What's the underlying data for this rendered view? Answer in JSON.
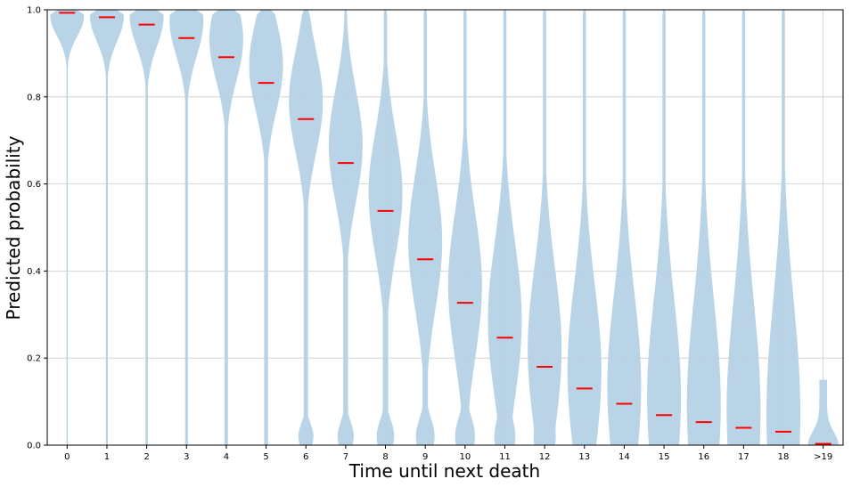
{
  "chart_data": {
    "type": "violin",
    "title": "",
    "xlabel": "Time until next death",
    "ylabel": "Predicted probability",
    "ylim": [
      0,
      1.0
    ],
    "categories": [
      "0",
      "1",
      "2",
      "3",
      "4",
      "5",
      "6",
      "7",
      "8",
      "9",
      "10",
      "11",
      "12",
      "13",
      "14",
      "15",
      "16",
      "17",
      "18",
      ">19"
    ],
    "yticks": [
      "0.0",
      "0.2",
      "0.4",
      "0.6",
      "0.8",
      "1.0"
    ],
    "medians": [
      0.993,
      0.983,
      0.966,
      0.935,
      0.891,
      0.832,
      0.749,
      0.648,
      0.538,
      0.427,
      0.327,
      0.247,
      0.18,
      0.13,
      0.095,
      0.069,
      0.053,
      0.04,
      0.031,
      0.003
    ],
    "grid": true,
    "colors": {
      "violin": "#b6d2e6",
      "median": "#ff0000",
      "grid": "#cccccc",
      "axis": "#000000"
    }
  }
}
